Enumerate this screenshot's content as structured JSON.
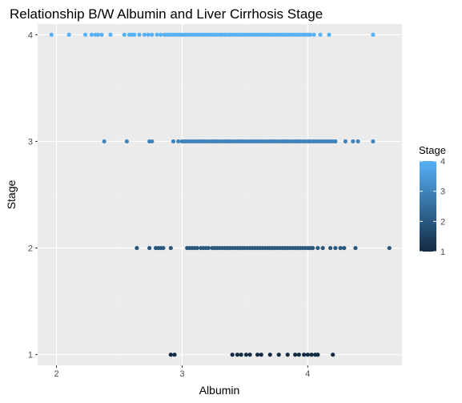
{
  "chart_data": {
    "type": "scatter",
    "title": "Relationship B/W Albumin and Liver Cirrhosis Stage",
    "xlabel": "Albumin",
    "ylabel": "Stage",
    "xlim": [
      1.85,
      4.75
    ],
    "ylim": [
      0.9,
      4.1
    ],
    "x_ticks": [
      2,
      3,
      4
    ],
    "y_ticks": [
      1,
      2,
      3,
      4
    ],
    "grid": true,
    "legend": {
      "title": "Stage",
      "placement": "right",
      "type": "colorbar",
      "min": 1,
      "max": 4,
      "ticks": [
        1,
        2,
        3,
        4
      ],
      "low_color": "#132B43",
      "high_color": "#56B1F7"
    },
    "series": [
      {
        "stage": 4,
        "x": [
          1.96,
          2.1,
          2.23,
          2.28,
          2.31,
          2.33,
          2.36,
          2.43,
          2.54,
          2.58,
          2.6,
          2.62,
          2.66,
          2.7,
          2.73,
          2.76,
          2.8,
          2.83,
          2.86,
          2.88,
          2.9,
          2.92,
          2.94,
          2.96,
          2.98,
          3.0,
          3.02,
          3.04,
          3.06,
          3.08,
          3.1,
          3.12,
          3.14,
          3.16,
          3.18,
          3.2,
          3.22,
          3.24,
          3.26,
          3.28,
          3.3,
          3.32,
          3.34,
          3.36,
          3.38,
          3.4,
          3.42,
          3.44,
          3.46,
          3.48,
          3.5,
          3.52,
          3.54,
          3.56,
          3.58,
          3.6,
          3.62,
          3.64,
          3.66,
          3.68,
          3.7,
          3.72,
          3.74,
          3.76,
          3.78,
          3.8,
          3.82,
          3.84,
          3.86,
          3.88,
          3.9,
          3.92,
          3.94,
          3.96,
          3.98,
          4.0,
          4.02,
          4.05,
          4.1,
          4.17,
          4.52
        ]
      },
      {
        "stage": 3,
        "x": [
          2.38,
          2.56,
          2.74,
          2.76,
          2.93,
          2.97,
          3.0,
          3.02,
          3.04,
          3.06,
          3.08,
          3.1,
          3.12,
          3.14,
          3.16,
          3.18,
          3.2,
          3.22,
          3.24,
          3.26,
          3.28,
          3.3,
          3.32,
          3.34,
          3.36,
          3.38,
          3.4,
          3.42,
          3.44,
          3.46,
          3.48,
          3.5,
          3.52,
          3.54,
          3.56,
          3.58,
          3.6,
          3.62,
          3.64,
          3.66,
          3.68,
          3.7,
          3.72,
          3.74,
          3.76,
          3.78,
          3.8,
          3.82,
          3.84,
          3.86,
          3.88,
          3.9,
          3.92,
          3.94,
          3.96,
          3.98,
          4.0,
          4.02,
          4.04,
          4.06,
          4.08,
          4.1,
          4.12,
          4.14,
          4.16,
          4.18,
          4.2,
          4.22,
          4.3,
          4.36,
          4.4,
          4.52
        ]
      },
      {
        "stage": 2,
        "x": [
          2.64,
          2.74,
          2.79,
          2.81,
          2.83,
          2.85,
          2.91,
          3.04,
          3.06,
          3.08,
          3.1,
          3.12,
          3.15,
          3.17,
          3.19,
          3.21,
          3.24,
          3.26,
          3.28,
          3.3,
          3.32,
          3.34,
          3.36,
          3.38,
          3.4,
          3.42,
          3.44,
          3.46,
          3.48,
          3.5,
          3.52,
          3.54,
          3.56,
          3.58,
          3.6,
          3.62,
          3.64,
          3.66,
          3.68,
          3.7,
          3.72,
          3.74,
          3.76,
          3.78,
          3.8,
          3.82,
          3.84,
          3.86,
          3.88,
          3.9,
          3.92,
          3.94,
          3.96,
          3.98,
          4.0,
          4.02,
          4.04,
          4.08,
          4.12,
          4.18,
          4.22,
          4.26,
          4.29,
          4.38,
          4.65
        ]
      },
      {
        "stage": 1,
        "x": [
          2.91,
          2.94,
          3.4,
          3.44,
          3.47,
          3.51,
          3.54,
          3.6,
          3.63,
          3.7,
          3.77,
          3.84,
          3.9,
          3.93,
          3.97,
          4.0,
          4.03,
          4.06,
          4.08,
          4.2
        ]
      }
    ]
  }
}
